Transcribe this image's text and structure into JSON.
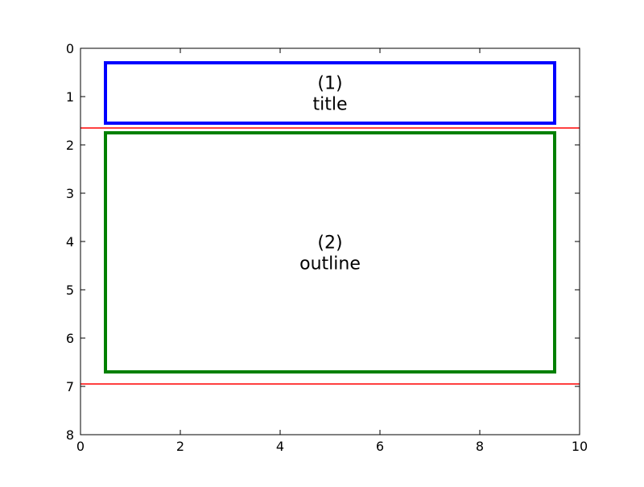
{
  "chart_data": {
    "type": "diagram",
    "title": "",
    "xlabel": "",
    "ylabel": "",
    "xlim": [
      0,
      10
    ],
    "ylim": [
      8,
      0
    ],
    "y_inverted": true,
    "grid": false,
    "xticks": [
      "0",
      "2",
      "4",
      "6",
      "8",
      "10"
    ],
    "yticks": [
      "0",
      "1",
      "2",
      "3",
      "4",
      "5",
      "6",
      "7",
      "8"
    ],
    "rectangles": [
      {
        "number": "(1)",
        "label": "title",
        "x0": 0.5,
        "x1": 9.5,
        "y0": 0.3,
        "y1": 1.55,
        "color": "#0000ff"
      },
      {
        "number": "(2)",
        "label": "outline",
        "x0": 0.5,
        "x1": 9.5,
        "y0": 1.75,
        "y1": 6.7,
        "color": "#008000"
      }
    ],
    "hlines": [
      {
        "y": 1.65,
        "color": "#ff0000"
      },
      {
        "y": 6.95,
        "color": "#ff0000"
      }
    ],
    "axes_color": "#000000"
  }
}
